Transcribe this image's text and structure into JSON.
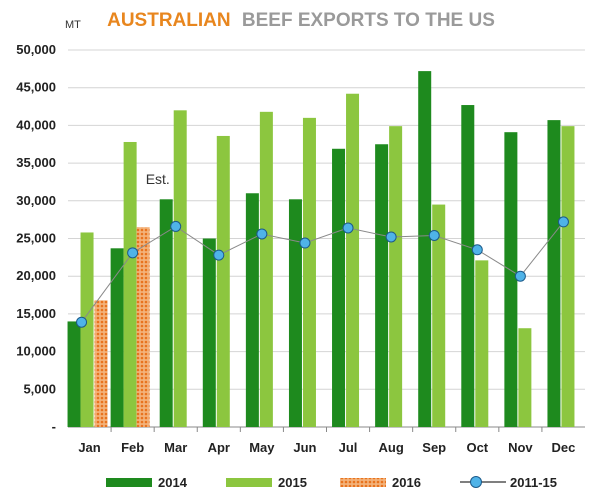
{
  "chart_data": {
    "type": "bar",
    "title_part1": "AUSTRALIAN",
    "title_part2": "BEEF EXPORTS TO THE US",
    "ylabel": "MT",
    "ylim": [
      0,
      50000
    ],
    "yticks": [
      "-",
      "5,000",
      "10,000",
      "15,000",
      "20,000",
      "25,000",
      "30,000",
      "35,000",
      "40,000",
      "45,000",
      "50,000"
    ],
    "categories": [
      "Jan",
      "Feb",
      "Mar",
      "Apr",
      "May",
      "Jun",
      "Jul",
      "Aug",
      "Sep",
      "Oct",
      "Nov",
      "Dec"
    ],
    "series": [
      {
        "name": "2014",
        "type": "bar",
        "color": "#1e8a1e",
        "values": [
          14000,
          23700,
          30200,
          25000,
          31000,
          30200,
          36900,
          37500,
          47200,
          42700,
          39100,
          40700
        ]
      },
      {
        "name": "2015",
        "type": "bar",
        "color": "#8cc63f",
        "values": [
          25800,
          37800,
          42000,
          38600,
          41800,
          41000,
          44200,
          39900,
          29500,
          22100,
          13100,
          39900
        ]
      },
      {
        "name": "2016",
        "type": "bar",
        "color": "#e8731e",
        "pattern": "hatched",
        "values": [
          16800,
          26500,
          null,
          null,
          null,
          null,
          null,
          null,
          null,
          null,
          null,
          null
        ]
      },
      {
        "name": "2011-15",
        "type": "line",
        "color": "#4fb3e8",
        "values": [
          13900,
          23100,
          26600,
          22800,
          25600,
          24400,
          26400,
          25200,
          25400,
          23500,
          20000,
          27200
        ]
      }
    ],
    "annotations": [
      {
        "text": "Est.",
        "category": "Mar"
      }
    ],
    "legend_position": "bottom",
    "grid": true
  }
}
